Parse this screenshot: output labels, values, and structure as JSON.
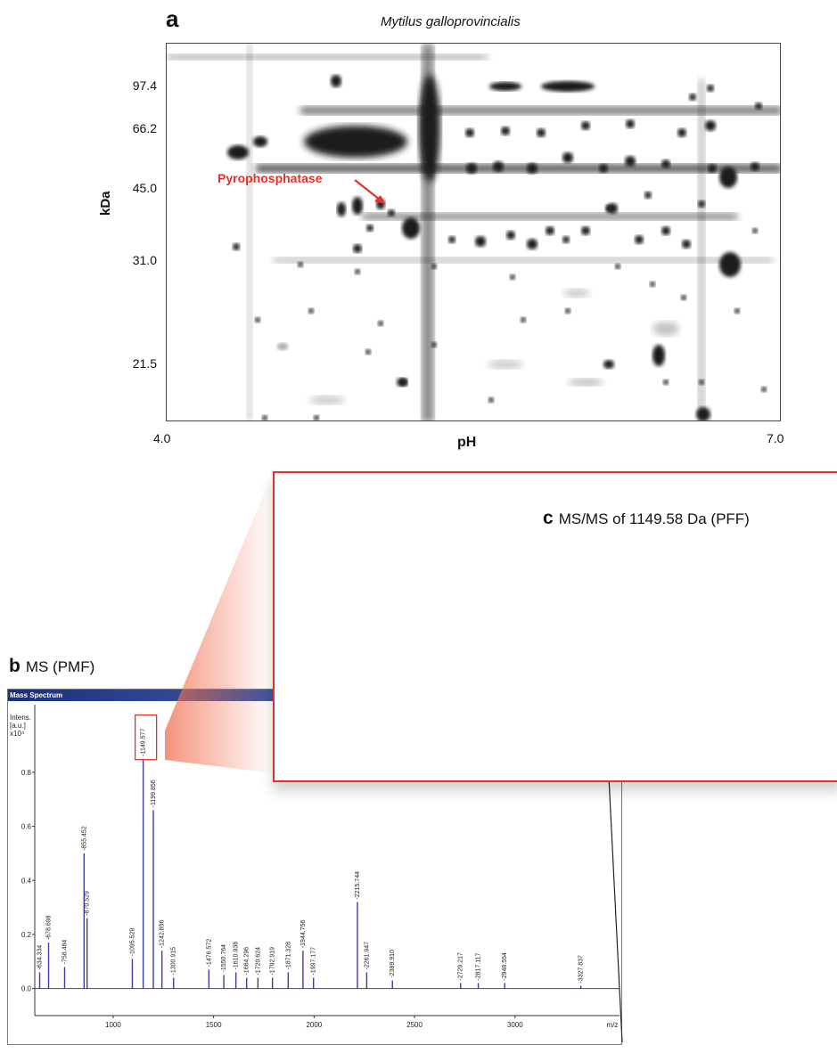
{
  "panel_a": {
    "letter": "a",
    "title": "Mytilus galloprovincialis",
    "y_axis_label": "kDa",
    "y_ticks": [
      "97.4",
      "66.2",
      "45.0",
      "31.0",
      "21.5"
    ],
    "x_axis_label": "pH",
    "x_ticks": [
      "4.0",
      "7.0"
    ],
    "annotation": "Pyrophosphatase",
    "colors": {
      "annotation": "#e0322a",
      "spot": "#111111"
    }
  },
  "panel_b": {
    "letter": "b",
    "title": "MS (PMF)",
    "window_title": "Mass Spectrum",
    "intensity_label": [
      "Intens.",
      "[a.u.]",
      "x10⁴"
    ],
    "x_unit": "m/z",
    "chart_data": {
      "type": "line",
      "title": "MS (PMF)",
      "xlabel": "m/z",
      "ylabel": "Intens. [a.u.] x10⁴",
      "xlim": [
        610,
        3520
      ],
      "ylim": [
        -0.1,
        1.05
      ],
      "x_ticks": [
        1000,
        1500,
        2000,
        2500,
        3000
      ],
      "y_ticks": [
        0.0,
        0.2,
        0.4,
        0.6,
        0.8
      ],
      "peaks": [
        {
          "mz": 634.334,
          "intensity": 0.06
        },
        {
          "mz": 678.698,
          "intensity": 0.17
        },
        {
          "mz": 758.484,
          "intensity": 0.08
        },
        {
          "mz": 855.452,
          "intensity": 0.5
        },
        {
          "mz": 870.529,
          "intensity": 0.26
        },
        {
          "mz": 1095.529,
          "intensity": 0.11
        },
        {
          "mz": 1149.577,
          "intensity": 0.85
        },
        {
          "mz": 1199.856,
          "intensity": 0.66
        },
        {
          "mz": 1242.856,
          "intensity": 0.14
        },
        {
          "mz": 1300.915,
          "intensity": 0.04
        },
        {
          "mz": 1476.572,
          "intensity": 0.07
        },
        {
          "mz": 1550.764,
          "intensity": 0.05
        },
        {
          "mz": 1610.938,
          "intensity": 0.06
        },
        {
          "mz": 1664.296,
          "intensity": 0.04
        },
        {
          "mz": 1720.624,
          "intensity": 0.04
        },
        {
          "mz": 1792.919,
          "intensity": 0.04
        },
        {
          "mz": 1871.328,
          "intensity": 0.06
        },
        {
          "mz": 1944.756,
          "intensity": 0.14
        },
        {
          "mz": 1997.177,
          "intensity": 0.04
        },
        {
          "mz": 2215.744,
          "intensity": 0.32
        },
        {
          "mz": 2261.947,
          "intensity": 0.06
        },
        {
          "mz": 2389.91,
          "intensity": 0.03
        },
        {
          "mz": 2729.217,
          "intensity": 0.02
        },
        {
          "mz": 2817.117,
          "intensity": 0.02
        },
        {
          "mz": 2948.554,
          "intensity": 0.02
        },
        {
          "mz": 3327.837,
          "intensity": 0.01
        }
      ],
      "peak_labels": [
        "634.334",
        "678.698",
        "758.484",
        "855.452",
        "870.529",
        "1095.529",
        "1149.577",
        "1199.856",
        "1242.856",
        "1300.915",
        "1476.572",
        "1550.764",
        "1610.938",
        "1664.296",
        "1720.624",
        "1792.919",
        "1871.328",
        "1944.756",
        "1997.177",
        "2215.744",
        "2261.947",
        "2389.910",
        "2729.217",
        "2817.117",
        "2948.554",
        "3327.837"
      ],
      "highlighted_peak": "1149.577",
      "colors": {
        "trace": "#3c3ca8",
        "highlight": "#e0322a"
      }
    }
  },
  "panel_c": {
    "letter": "c",
    "title": "MS/MS of 1149.58 Da (PFF)"
  }
}
